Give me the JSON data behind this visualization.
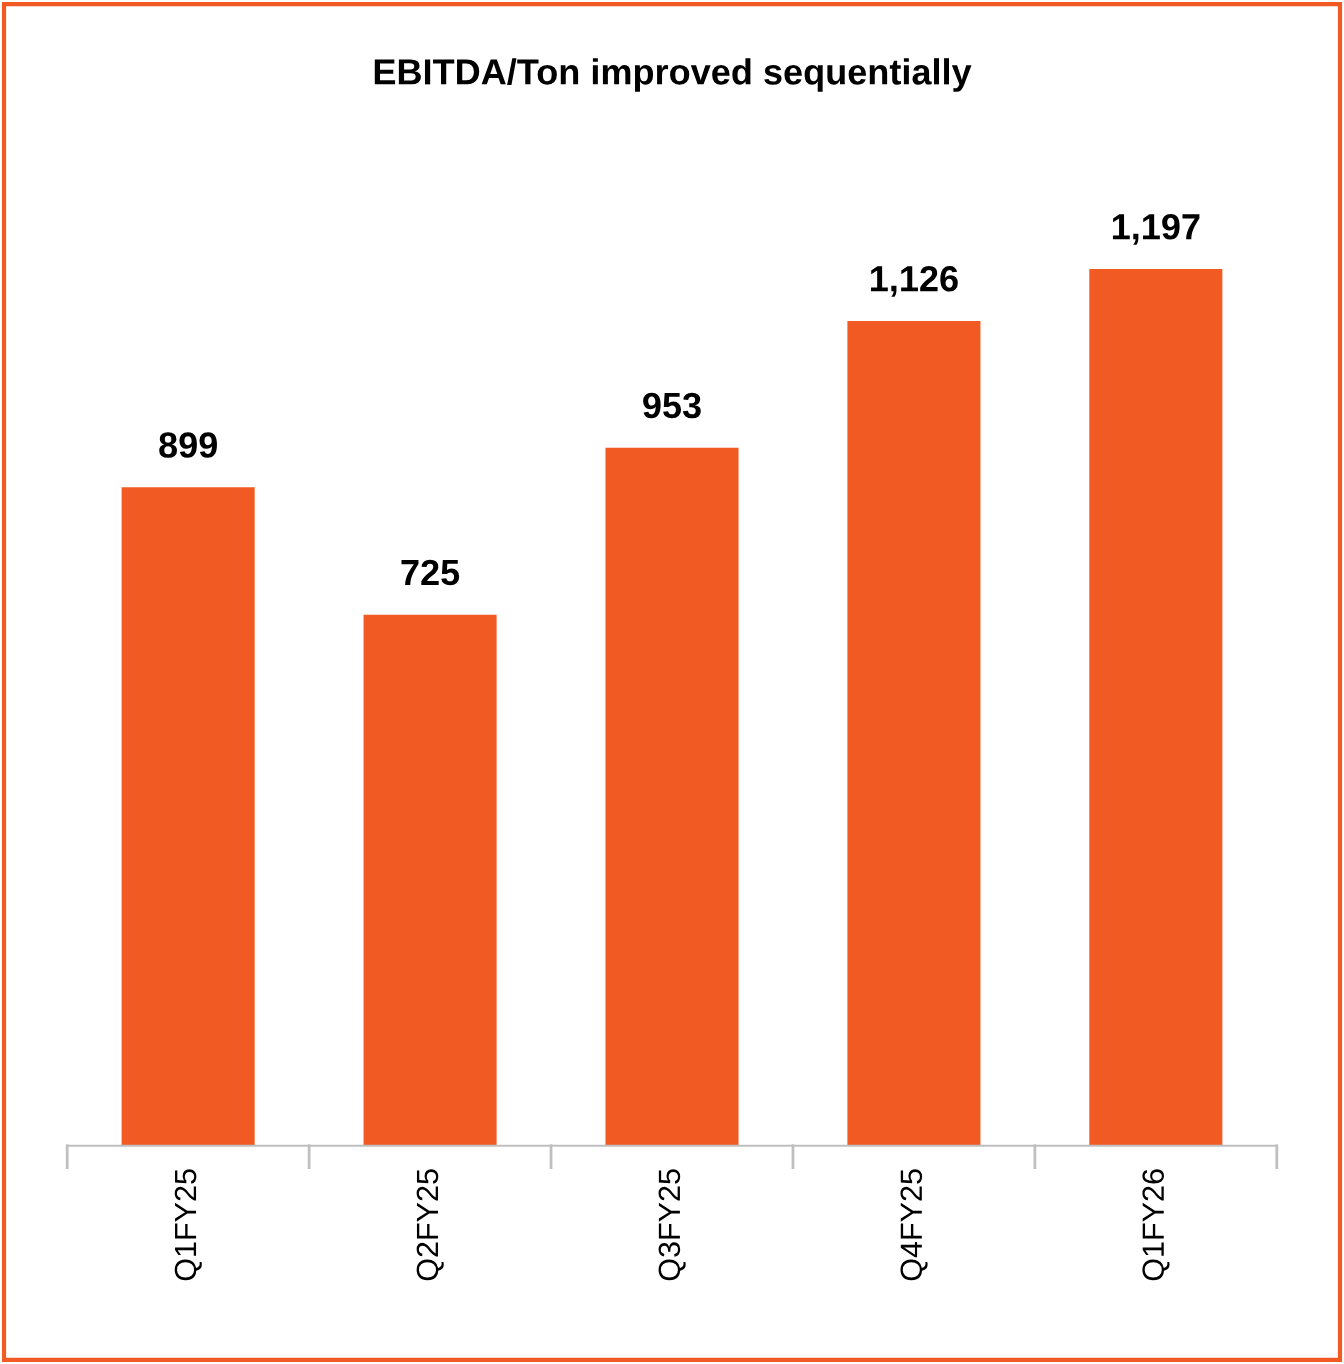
{
  "chart_data": {
    "type": "bar",
    "title": "EBITDA/Ton improved sequentially",
    "categories": [
      "Q1FY25",
      "Q2FY25",
      "Q3FY25",
      "Q4FY25",
      "Q1FY26"
    ],
    "values": [
      899,
      725,
      953,
      1126,
      1197
    ],
    "value_labels": [
      "899",
      "725",
      "953",
      "1,126",
      "1,197"
    ],
    "color": "#f15a22",
    "grid": false,
    "legend": false
  }
}
